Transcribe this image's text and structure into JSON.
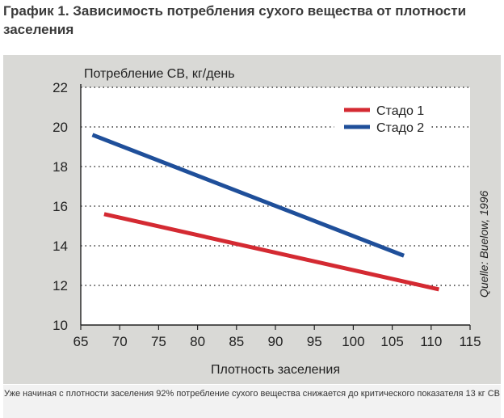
{
  "heading": "График 1. Зависимость потребления сухого вещества от плотности заселения",
  "caption": "Уже начиная с плотности заселения 92% потребление сухого вещества снижается до критического показателя 13 кг СВ",
  "colors": {
    "stado1": "#d42a32",
    "stado2": "#1f4f9a",
    "plot_bg": "#ffffff",
    "photo_bg": "#d9d9d6"
  },
  "chart_data": {
    "type": "line",
    "title": "",
    "ylabel": "Потребление СВ, кг/день",
    "xlabel": "Плотность заселения",
    "source": "Quelle: Buelow, 1996",
    "xlim": [
      65,
      115
    ],
    "ylim": [
      10,
      22
    ],
    "xticks": [
      65,
      70,
      75,
      80,
      85,
      90,
      95,
      100,
      105,
      110,
      115
    ],
    "yticks": [
      10,
      12,
      14,
      16,
      18,
      20,
      22
    ],
    "grid": "horizontal dotted",
    "legend_position": "top-right",
    "series": [
      {
        "name": "Стадо 1",
        "color": "#d42a32",
        "x": [
          68,
          111
        ],
        "y": [
          15.6,
          11.8
        ]
      },
      {
        "name": "Стадо 2",
        "color": "#1f4f9a",
        "x": [
          66.5,
          106.5
        ],
        "y": [
          19.6,
          13.5
        ]
      }
    ]
  }
}
